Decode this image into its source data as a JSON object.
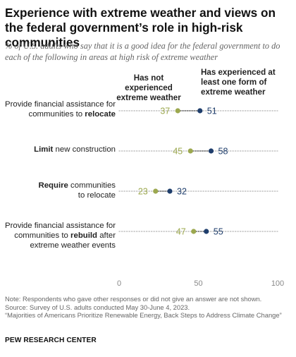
{
  "title": "Experience with extreme weather and views on the federal government’s role in high-risk communities",
  "subtitle": "% of U.S. adults who say that it is a good idea for the federal government to do each of the following in areas at high risk of extreme weather",
  "legend": {
    "not_experienced": "Has not experienced extreme weather",
    "experienced": "Has experienced at least one form of extreme weather"
  },
  "colors": {
    "not_experienced": "#9ca84f",
    "experienced": "#1f3e6c",
    "dotted_line": "#b5b5b5"
  },
  "categories": [
    {
      "before": "Provide financial assistance for communities to ",
      "bold": "relocate",
      "after": ""
    },
    {
      "before": "",
      "bold": "Limit",
      "after": " new construction"
    },
    {
      "before": "",
      "bold": "Require",
      "after": " communities to relocate"
    },
    {
      "before": "Provide financial assistance for communities to ",
      "bold": "rebuild",
      "after": " after extreme weather events"
    }
  ],
  "chart_data": {
    "type": "scatter",
    "subtype": "dot-plot",
    "categories": [
      "Provide financial assistance for communities to relocate",
      "Limit new construction",
      "Require communities to relocate",
      "Provide financial assistance for communities to rebuild after extreme weather events"
    ],
    "series": [
      {
        "name": "Has not experienced extreme weather",
        "values": [
          37,
          45,
          23,
          47
        ]
      },
      {
        "name": "Has experienced at least one form of extreme weather",
        "values": [
          51,
          58,
          32,
          55
        ]
      }
    ],
    "xlim": [
      0,
      100
    ],
    "xticks": [
      0,
      50,
      100
    ],
    "grid": false
  },
  "notes": {
    "note": "Note: Respondents who gave other responses or did not give an answer are not shown.",
    "source": "Source: Survey of U.S. adults conducted May 30-June 4, 2023.",
    "report": "“Majorities of Americans Prioritize Renewable Energy, Back Steps to Address Climate Change”"
  },
  "org": "PEW RESEARCH CENTER"
}
